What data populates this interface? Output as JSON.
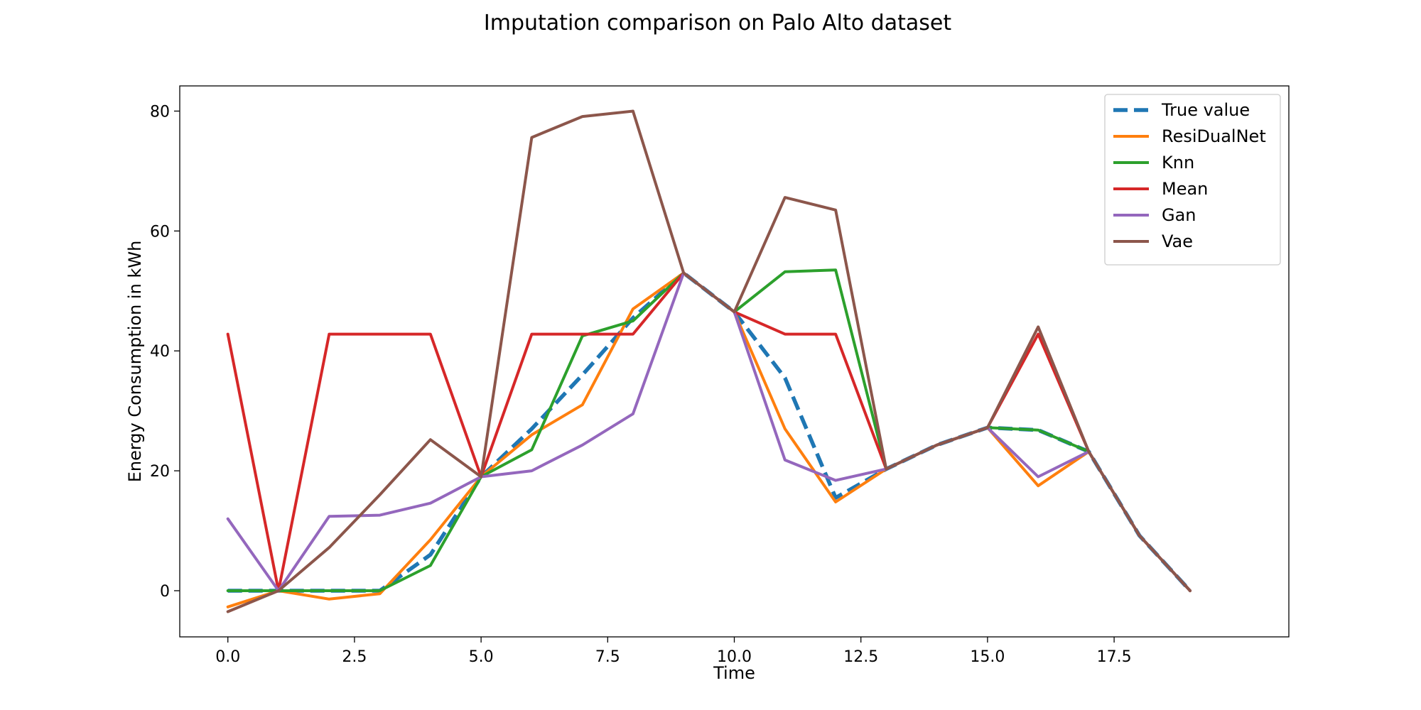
{
  "chart_data": {
    "type": "line",
    "title": "Imputation comparison on Palo Alto dataset",
    "xlabel": "Time",
    "ylabel": "Energy Consumption in kWh",
    "xlim": [
      -0.95,
      20.95
    ],
    "ylim": [
      -7.7,
      84.2
    ],
    "xticks": [
      0.0,
      2.5,
      5.0,
      7.5,
      10.0,
      12.5,
      15.0,
      17.5
    ],
    "xtick_labels": [
      "0.0",
      "2.5",
      "5.0",
      "7.5",
      "10.0",
      "12.5",
      "15.0",
      "17.5"
    ],
    "yticks": [
      0,
      20,
      40,
      60,
      80
    ],
    "ytick_labels": [
      "0",
      "20",
      "40",
      "60",
      "80"
    ],
    "grid": false,
    "legend_position": "top-right",
    "x": [
      0,
      1,
      2,
      3,
      4,
      5,
      6,
      7,
      8,
      9,
      10,
      11,
      12,
      13,
      14,
      15,
      16,
      17,
      18,
      19
    ],
    "series": [
      {
        "name": "True value",
        "color": "#1f77b4",
        "dashed": true,
        "values": [
          0.0,
          0.0,
          0.0,
          0.0,
          6.0,
          19.0,
          27.0,
          36.0,
          45.5,
          53.0,
          46.5,
          35.5,
          15.5,
          20.3,
          24.3,
          27.2,
          26.8,
          23.2,
          9.2,
          0.0
        ]
      },
      {
        "name": "ResiDualNet",
        "color": "#ff7f0e",
        "dashed": false,
        "values": [
          -2.7,
          0.0,
          -1.4,
          -0.5,
          8.5,
          19.0,
          26.0,
          31.0,
          47.0,
          53.0,
          46.5,
          27.0,
          14.8,
          20.3,
          24.3,
          27.2,
          17.5,
          23.2,
          9.2,
          0.0
        ]
      },
      {
        "name": "Knn",
        "color": "#2ca02c",
        "dashed": false,
        "values": [
          0.0,
          0.0,
          0.0,
          0.0,
          4.2,
          19.0,
          23.5,
          42.5,
          45.0,
          53.0,
          46.5,
          53.2,
          53.5,
          20.3,
          24.3,
          27.2,
          26.8,
          23.2,
          9.2,
          0.0
        ]
      },
      {
        "name": "Mean",
        "color": "#d62728",
        "dashed": false,
        "values": [
          42.8,
          0.0,
          42.8,
          42.8,
          42.8,
          19.0,
          42.8,
          42.8,
          42.8,
          53.0,
          46.5,
          42.8,
          42.8,
          20.3,
          24.3,
          27.2,
          42.8,
          23.2,
          9.2,
          0.0
        ]
      },
      {
        "name": "Gan",
        "color": "#9467bd",
        "dashed": false,
        "values": [
          12.0,
          0.0,
          12.4,
          12.6,
          14.6,
          19.0,
          20.0,
          24.3,
          29.5,
          53.0,
          46.5,
          21.8,
          18.4,
          20.3,
          24.3,
          27.2,
          19.0,
          23.2,
          9.2,
          0.0
        ]
      },
      {
        "name": "Vae",
        "color": "#8c564b",
        "dashed": false,
        "values": [
          -3.5,
          0.0,
          7.2,
          16.0,
          25.2,
          19.0,
          75.6,
          79.1,
          80.0,
          53.0,
          46.5,
          65.6,
          63.5,
          20.3,
          24.3,
          27.2,
          44.0,
          23.2,
          9.2,
          0.0
        ]
      }
    ]
  }
}
